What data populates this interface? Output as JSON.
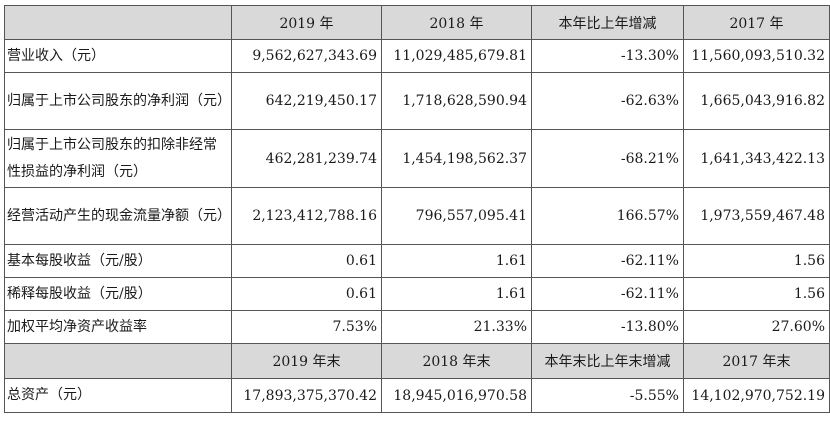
{
  "header": [
    "",
    "2019 年",
    "2018 年",
    "本年比上年增减",
    "2017 年"
  ],
  "rows": [
    {
      "label": "营业收入（元）",
      "v2019": "9,562,627,343.69",
      "v2018": "11,029,485,679.81",
      "change": "-13.30%",
      "v2017": "11,560,093,510.32"
    },
    {
      "label": "归属于上市公司股东的净利润（元）",
      "v2019": "642,219,450.17",
      "v2018": "1,718,628,590.94",
      "change": "-62.63%",
      "v2017": "1,665,043,916.82"
    },
    {
      "label": "归属于上市公司股东的扣除非经常性损益的净利润（元）",
      "v2019": "462,281,239.74",
      "v2018": "1,454,198,562.37",
      "change": "-68.21%",
      "v2017": "1,641,343,422.13"
    },
    {
      "label": "经营活动产生的现金流量净额（元）",
      "v2019": "2,123,412,788.16",
      "v2018": "796,557,095.41",
      "change": "166.57%",
      "v2017": "1,973,559,467.48"
    },
    {
      "label": "基本每股收益（元/股）",
      "v2019": "0.61",
      "v2018": "1.61",
      "change": "-62.11%",
      "v2017": "1.56"
    },
    {
      "label": "稀释每股收益（元/股）",
      "v2019": "0.61",
      "v2018": "1.61",
      "change": "-62.11%",
      "v2017": "1.56"
    },
    {
      "label": "加权平均净资产收益率",
      "v2019": "7.53%",
      "v2018": "21.33%",
      "change": "-13.80%",
      "v2017": "27.60%"
    }
  ],
  "header2": [
    "",
    "2019 年末",
    "2018 年末",
    "本年末比上年末增减",
    "2017 年末"
  ],
  "rows2": [
    {
      "label": "总资产（元）",
      "v2019": "17,893,375,370.42",
      "v2018": "18,945,016,970.58",
      "change": "-5.55%",
      "v2017": "14,102,970,752.19"
    }
  ]
}
